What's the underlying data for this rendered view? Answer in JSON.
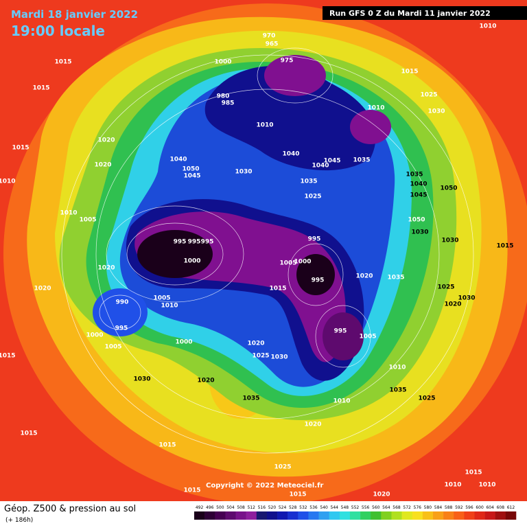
{
  "header": {
    "date": "Mardi 18 janvier 2022",
    "time": "19:00 locale",
    "run": "Run GFS 0 Z du Mardi 11 janvier 2022",
    "copyright": "Copyright © 2022 Meteociel.fr"
  },
  "footer": {
    "title": "Géop. Z500 & pression au sol",
    "lead": "(+ 186h)"
  },
  "legend": {
    "values": [
      492,
      496,
      500,
      504,
      508,
      512,
      516,
      520,
      524,
      528,
      532,
      536,
      540,
      544,
      548,
      552,
      556,
      560,
      564,
      568,
      572,
      576,
      580,
      584,
      588,
      592,
      596,
      600,
      604,
      608,
      612
    ],
    "colors": [
      "#1a001a",
      "#2e0036",
      "#460052",
      "#5e0a6e",
      "#78128a",
      "#8e1e9e",
      "#181870",
      "#10108c",
      "#1018b0",
      "#1830d0",
      "#2050e8",
      "#2878f0",
      "#30a0f0",
      "#30c8f0",
      "#30e0e0",
      "#30e0a0",
      "#30d060",
      "#40c030",
      "#80d020",
      "#b0e020",
      "#e0e820",
      "#f8e020",
      "#f8c018",
      "#f8a018",
      "#f88018",
      "#f86018",
      "#f04018",
      "#e02818",
      "#c81818",
      "#a01010",
      "#780808"
    ]
  },
  "isobars": [
    1015,
    1015,
    1015,
    1010,
    1020,
    1020,
    1010,
    1005,
    1020,
    1020,
    990,
    995,
    1000,
    1005,
    1005,
    1010,
    1000,
    995,
    995,
    995,
    1000,
    1040,
    1050,
    1045,
    1030,
    1000,
    985,
    980,
    970,
    965,
    975,
    1010,
    1015,
    1025,
    1030,
    1010,
    1040,
    1040,
    1045,
    1035,
    1035,
    1025,
    1035,
    1040,
    1045,
    1050,
    1050,
    1030,
    1030,
    1015,
    995,
    995,
    1005,
    1000,
    1015,
    1020,
    1035,
    1025,
    1020,
    1030,
    995,
    1005,
    1010,
    1010,
    1025,
    1020,
    1035,
    1030,
    1020,
    1030,
    1035,
    1025,
    1015,
    1015,
    1020,
    1015,
    1015,
    1010,
    1010,
    1010,
    1020,
    1025,
    1015,
    1015
  ]
}
